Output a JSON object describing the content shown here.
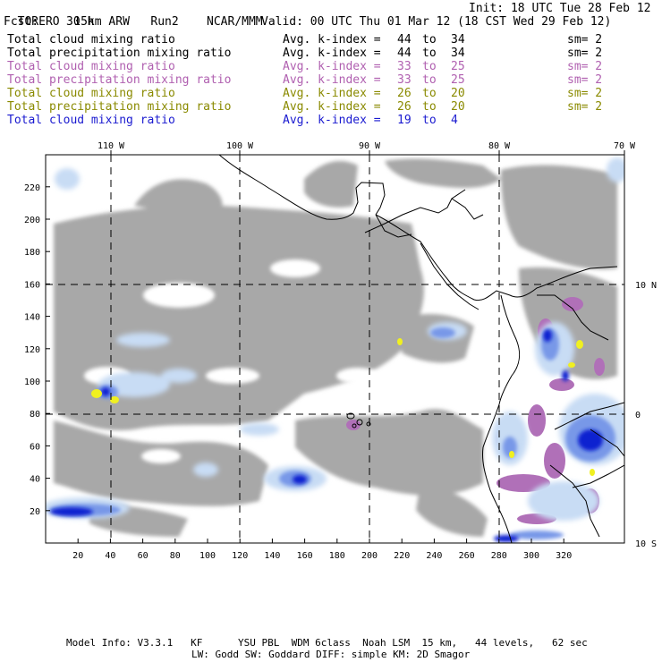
{
  "header": {
    "model": "TORERO",
    "resolution": "15km ARW",
    "run": "Run2",
    "org": "NCAR/MMM",
    "init": "Init: 18 UTC Tue 28 Feb 12",
    "fcst_label": "Fcst:",
    "fcst_value": "30 h",
    "valid": "Valid: 00 UTC Thu 01 Mar 12 (18 CST Wed 29 Feb 12)"
  },
  "fields": [
    {
      "name": "Total cloud mixing ratio",
      "kindex": "Avg. k-index =",
      "from": "44",
      "to_word": "to",
      "to": "34",
      "sm": "sm= 2",
      "color": "#000000"
    },
    {
      "name": "Total precipitation mixing ratio",
      "kindex": "Avg. k-index =",
      "from": "44",
      "to_word": "to",
      "to": "34",
      "sm": "sm= 2",
      "color": "#000000"
    },
    {
      "name": "Total cloud mixing ratio",
      "kindex": "Avg. k-index =",
      "from": "33",
      "to_word": "to",
      "to": "25",
      "sm": "sm= 2",
      "color": "#b060b0"
    },
    {
      "name": "Total precipitation mixing ratio",
      "kindex": "Avg. k-index =",
      "from": "33",
      "to_word": "to",
      "to": "25",
      "sm": "sm= 2",
      "color": "#b060b0"
    },
    {
      "name": "Total cloud mixing ratio",
      "kindex": "Avg. k-index =",
      "from": "26",
      "to_word": "to",
      "to": "20",
      "sm": "sm= 2",
      "color": "#8a8a00"
    },
    {
      "name": "Total precipitation mixing ratio",
      "kindex": "Avg. k-index =",
      "from": "26",
      "to_word": "to",
      "to": "20",
      "sm": "sm= 2",
      "color": "#8a8a00"
    },
    {
      "name": "Total cloud mixing ratio",
      "kindex": "Avg. k-index =",
      "from": "19",
      "to_word": "to",
      "to": "4",
      "sm": "",
      "color": "#1a1ad0"
    }
  ],
  "axes": {
    "x_ticks": [
      "20",
      "40",
      "60",
      "80",
      "100",
      "120",
      "140",
      "160",
      "180",
      "200",
      "220",
      "240",
      "260",
      "280",
      "300",
      "320"
    ],
    "y_ticks": [
      "20",
      "40",
      "60",
      "80",
      "100",
      "120",
      "140",
      "160",
      "180",
      "200",
      "220"
    ],
    "lon_labels": [
      "110 W",
      "100 W",
      "90 W",
      "80 W",
      "70 W"
    ],
    "lat_labels": [
      "10 N",
      "0",
      "10 S"
    ]
  },
  "footer": {
    "line1": "Model Info: V3.3.1   KF      YSU PBL  WDM 6class  Noah LSM  15 km,   44 levels,   62 sec",
    "line2": "LW: Godd SW: Goddard DIFF: simple KM: 2D Smagor"
  },
  "colors": {
    "cloud_gray": "#a8a8a8",
    "light_blue": "#c8dcf4",
    "mid_blue": "#7898e8",
    "dark_blue": "#1020d0",
    "purple": "#b070b8",
    "yellow": "#f0f020"
  }
}
